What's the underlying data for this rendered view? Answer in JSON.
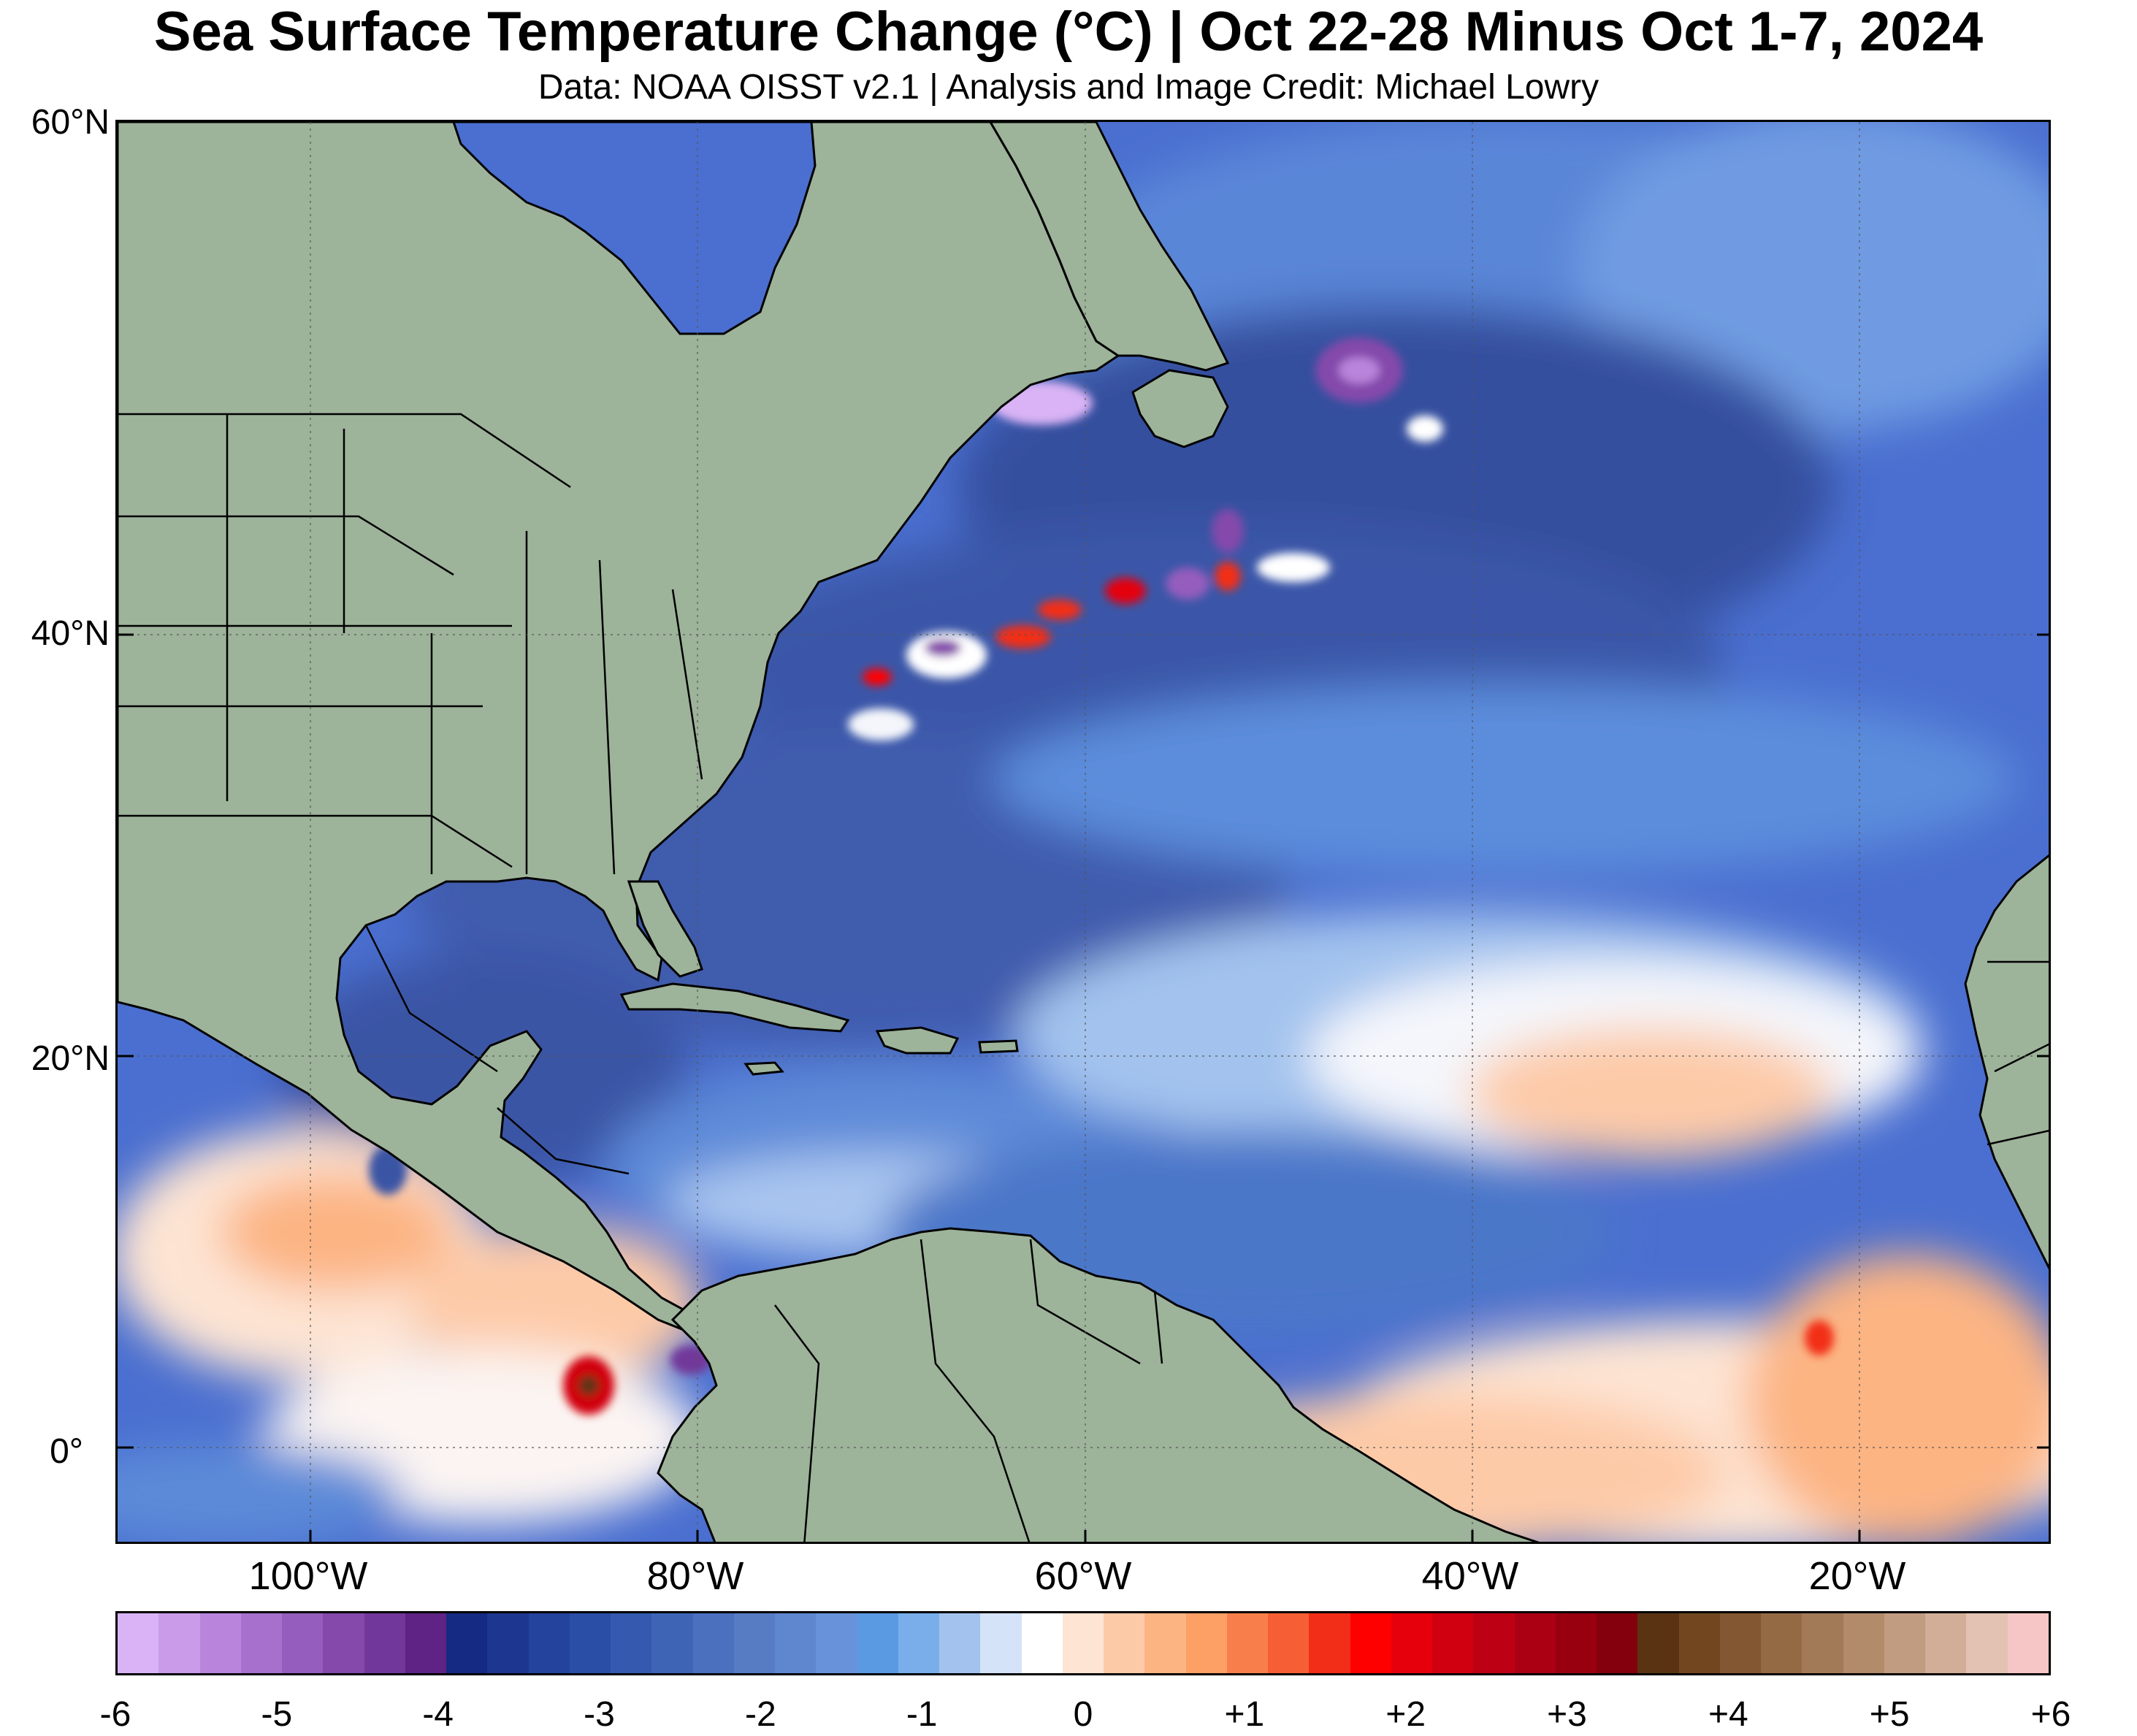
{
  "title": "Sea Surface Temperature Change (°C) | Oct 22-28 Minus Oct 1-7, 2024",
  "subtitle": "Data: NOAA OISST v2.1 | Analysis and Image Credit: Michael Lowry",
  "map": {
    "lat_labels": [
      "60°N",
      "40°N",
      "20°N",
      "0°"
    ],
    "lon_labels": [
      "100°W",
      "80°W",
      "60°W",
      "40°W",
      "20°W"
    ],
    "land_color": "#9db39a",
    "ocean_base_color": "#4a6fd0"
  },
  "colorbar": {
    "labels": [
      "-6",
      "-5",
      "-4",
      "-3",
      "-2",
      "-1",
      "0",
      "+1",
      "+2",
      "+3",
      "+4",
      "+5",
      "+6"
    ],
    "colors": [
      "#d9b3f5",
      "#c99be9",
      "#b985dc",
      "#a670cc",
      "#955dbd",
      "#8449ab",
      "#72379a",
      "#5e2384",
      "#152a82",
      "#1d3790",
      "#23439c",
      "#2a4ea6",
      "#3459ae",
      "#3e64b6",
      "#4a70be",
      "#577cc4",
      "#5f87d0",
      "#6893da",
      "#5a9ae2",
      "#79aeea",
      "#a3c3ee",
      "#d4e3f7",
      "#ffffff",
      "#fde4d3",
      "#fdcaa8",
      "#fcb483",
      "#fca066",
      "#f87f4c",
      "#f65f35",
      "#f22d18",
      "#ff0000",
      "#e5000b",
      "#d10010",
      "#be0014",
      "#ab0014",
      "#980010",
      "#84000c",
      "#5a3412",
      "#724720",
      "#835731",
      "#946a45",
      "#a37a58",
      "#b28b6b",
      "#c19c80",
      "#d2ad97",
      "#e3c2b4",
      "#f6c6c6"
    ]
  }
}
